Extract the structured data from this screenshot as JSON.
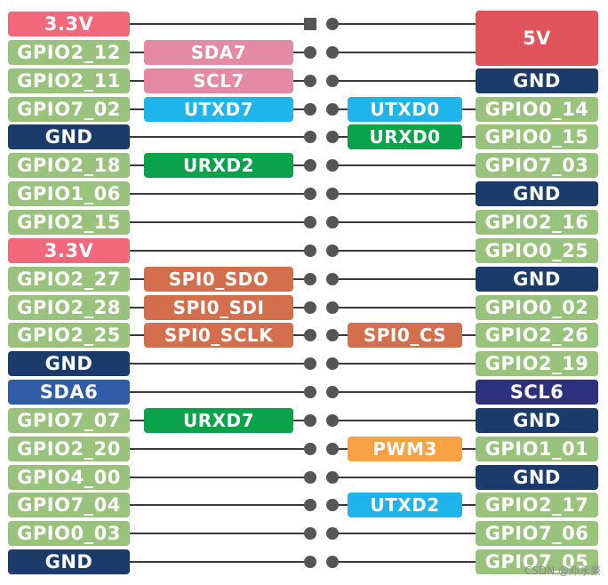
{
  "colors": {
    "gpio": "#99c27c",
    "power33": "#f2687b",
    "power5": "#e1535b",
    "gnd": "#1b3b6b",
    "i2c7": "#e58aa5",
    "uart0_7": "#1fb4ec",
    "uart2_rx": "#0aa24a",
    "spi": "#d46f4d",
    "sda6": "#2f5ba7",
    "scl6": "#2d2f7f",
    "pwm": "#f8a145",
    "pin": "#555555",
    "line": "#3a3a3a"
  },
  "rows": [
    {
      "left": {
        "text": "3.3V",
        "kind": "power33"
      },
      "right": {
        "text": "5V",
        "kind": "power5"
      }
    },
    {
      "left": {
        "text": "GPIO2_12",
        "kind": "gpio"
      },
      "left_fn": {
        "text": "SDA7",
        "kind": "i2c7"
      }
    },
    {
      "left": {
        "text": "GPIO2_11",
        "kind": "gpio"
      },
      "left_fn": {
        "text": "SCL7",
        "kind": "i2c7"
      },
      "right": {
        "text": "GND",
        "kind": "gnd"
      }
    },
    {
      "left": {
        "text": "GPIO7_02",
        "kind": "gpio"
      },
      "left_fn": {
        "text": "UTXD7",
        "kind": "uart0_7"
      },
      "right_fn": {
        "text": "UTXD0",
        "kind": "uart0_7"
      },
      "right": {
        "text": "GPIO0_14",
        "kind": "gpio"
      }
    },
    {
      "left": {
        "text": "GND",
        "kind": "gnd"
      },
      "right_fn": {
        "text": "URXD0",
        "kind": "uart2_rx"
      },
      "right": {
        "text": "GPIO0_15",
        "kind": "gpio"
      }
    },
    {
      "left": {
        "text": "GPIO2_18",
        "kind": "gpio"
      },
      "left_fn": {
        "text": "URXD2",
        "kind": "uart2_rx"
      },
      "right": {
        "text": "GPIO7_03",
        "kind": "gpio"
      }
    },
    {
      "left": {
        "text": "GPIO1_06",
        "kind": "gpio"
      },
      "right": {
        "text": "GND",
        "kind": "gnd"
      }
    },
    {
      "left": {
        "text": "GPIO2_15",
        "kind": "gpio"
      },
      "right": {
        "text": "GPIO2_16",
        "kind": "gpio"
      }
    },
    {
      "left": {
        "text": "3.3V",
        "kind": "power33"
      },
      "right": {
        "text": "GPIO0_25",
        "kind": "gpio"
      }
    },
    {
      "left": {
        "text": "GPIO2_27",
        "kind": "gpio"
      },
      "left_fn": {
        "text": "SPI0_SDO",
        "kind": "spi"
      },
      "right": {
        "text": "GND",
        "kind": "gnd"
      }
    },
    {
      "left": {
        "text": "GPIO2_28",
        "kind": "gpio"
      },
      "left_fn": {
        "text": "SPI0_SDI",
        "kind": "spi"
      },
      "right": {
        "text": "GPIO0_02",
        "kind": "gpio"
      }
    },
    {
      "left": {
        "text": "GPIO2_25",
        "kind": "gpio"
      },
      "left_fn": {
        "text": "SPI0_SCLK",
        "kind": "spi"
      },
      "right_fn": {
        "text": "SPI0_CS",
        "kind": "spi"
      },
      "right": {
        "text": "GPIO2_26",
        "kind": "gpio"
      }
    },
    {
      "left": {
        "text": "GND",
        "kind": "gnd"
      },
      "right": {
        "text": "GPIO2_19",
        "kind": "gpio"
      }
    },
    {
      "left": {
        "text": "SDA6",
        "kind": "sda6"
      },
      "right": {
        "text": "SCL6",
        "kind": "scl6"
      }
    },
    {
      "left": {
        "text": "GPIO7_07",
        "kind": "gpio"
      },
      "left_fn": {
        "text": "URXD7",
        "kind": "uart2_rx"
      },
      "right": {
        "text": "GND",
        "kind": "gnd"
      }
    },
    {
      "left": {
        "text": "GPIO2_20",
        "kind": "gpio"
      },
      "right_fn": {
        "text": "PWM3",
        "kind": "pwm"
      },
      "right": {
        "text": "GPIO1_01",
        "kind": "gpio"
      }
    },
    {
      "left": {
        "text": "GPIO4_00",
        "kind": "gpio"
      },
      "right": {
        "text": "GND",
        "kind": "gnd"
      }
    },
    {
      "left": {
        "text": "GPIO7_04",
        "kind": "gpio"
      },
      "right_fn": {
        "text": "UTXD2",
        "kind": "uart0_7"
      },
      "right": {
        "text": "GPIO2_17",
        "kind": "gpio"
      }
    },
    {
      "left": {
        "text": "GPIO0_03",
        "kind": "gpio"
      },
      "right": {
        "text": "GPIO7_06",
        "kind": "gpio"
      }
    },
    {
      "left": {
        "text": "GND",
        "kind": "gnd"
      },
      "right": {
        "text": "GPIO7_05",
        "kind": "gpio"
      }
    }
  ],
  "watermark": "CSDN @邓永豪"
}
